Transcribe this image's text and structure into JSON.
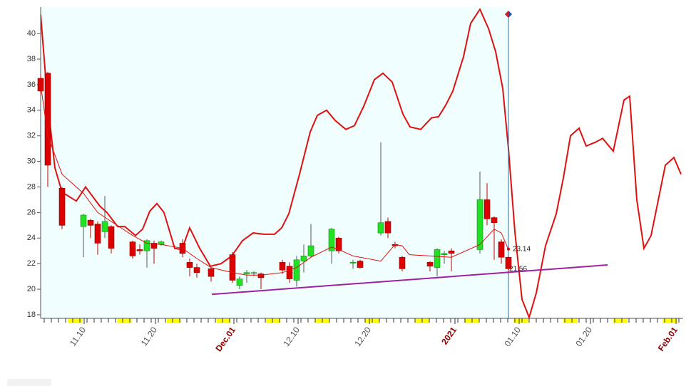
{
  "chart_data": {
    "type": "candlestick",
    "xlim": [
      2.9,
      93
    ],
    "ylim": [
      17.72,
      42.07
    ],
    "yticks": [
      18,
      20,
      22,
      24,
      26,
      28,
      30,
      32,
      34,
      36,
      38,
      40
    ],
    "xticks": [
      {
        "value": 9,
        "label": "11.10"
      },
      {
        "value": 19,
        "label": "11.20"
      },
      {
        "value": 30,
        "label": "Dec.01"
      },
      {
        "value": 39,
        "label": "12.10"
      },
      {
        "value": 49,
        "label": "12.20"
      },
      {
        "value": 61,
        "label": "2021"
      },
      {
        "value": 70,
        "label": "01.10"
      },
      {
        "value": 80,
        "label": "01.20"
      },
      {
        "value": 92,
        "label": "Feb.01"
      }
    ],
    "candles": {
      "up_color": "#22e022",
      "down_color": "#dd0000",
      "x": [
        2.9,
        3.9,
        5.9,
        8.9,
        9.9,
        10.9,
        11.9,
        12.8,
        15.8,
        16.8,
        17.8,
        18.8,
        19.8,
        22.8,
        23.8,
        24.8,
        26.8,
        29.8,
        30.8,
        31.8,
        32.8,
        33.8,
        36.8,
        37.8,
        38.8,
        39.8,
        40.8,
        43.7,
        44.7,
        46.7,
        47.7,
        50.6,
        51.6,
        52.6,
        53.6,
        57.5,
        58.5,
        59.5,
        60.5,
        64.5,
        65.5,
        66.5,
        67.5,
        68.5
      ],
      "open": [
        36.5,
        36.9,
        27.9,
        24.9,
        25.4,
        25.1,
        24.5,
        24.9,
        23.7,
        23.1,
        23,
        23.6,
        23.5,
        23.6,
        22.1,
        21.7,
        21.6,
        22.7,
        20.3,
        21.2,
        21.3,
        21.2,
        22.1,
        21.8,
        20.7,
        22.2,
        22.6,
        23,
        24,
        22.1,
        22.2,
        24.4,
        25.3,
        23.5,
        22.5,
        22.1,
        21.7,
        22.7,
        23,
        23.1,
        27,
        25.6,
        23.7,
        22.5
      ],
      "high": [
        36.8,
        37,
        28,
        25.9,
        25.5,
        25.3,
        27.3,
        25,
        23.8,
        23.5,
        23.9,
        23.8,
        23.8,
        23.9,
        22.4,
        22,
        21.7,
        22.9,
        21,
        21.5,
        21.4,
        21.3,
        22.3,
        22.1,
        22.6,
        23.5,
        25.1,
        24.8,
        24.1,
        22.3,
        22.3,
        31.5,
        25.6,
        23.7,
        22.6,
        22.2,
        23.2,
        23,
        23.2,
        29.2,
        28.3,
        25.7,
        23.9,
        22.6
      ],
      "low": [
        35.3,
        28,
        24.7,
        22.5,
        24,
        22.7,
        24,
        22.8,
        22.4,
        22.7,
        21.7,
        22,
        23.4,
        22.5,
        21,
        20.9,
        20.6,
        20.5,
        20,
        20.5,
        21,
        20,
        21.2,
        20.5,
        20.2,
        21.3,
        22.5,
        22,
        22.8,
        21.6,
        21.6,
        24.2,
        24,
        23.2,
        21.4,
        21.4,
        21,
        22,
        21.4,
        22.8,
        25,
        22.3,
        22,
        21.2
      ],
      "close": [
        35.5,
        29.7,
        25,
        25.8,
        25,
        23.6,
        25.3,
        23.2,
        22.6,
        23,
        23.8,
        23.2,
        23.7,
        22.8,
        21.7,
        21.3,
        21,
        20.7,
        20.8,
        21.3,
        21.3,
        20.9,
        21.5,
        20.8,
        22.3,
        22.6,
        23.4,
        24.7,
        23,
        22.1,
        21.7,
        25.2,
        24.4,
        23.4,
        21.6,
        21.8,
        23.1,
        22.8,
        22.8,
        27,
        25.5,
        25.2,
        22.5,
        21.6
      ]
    },
    "moving_average": {
      "color": "#e01010",
      "x": [
        2.9,
        3.9,
        5.9,
        8.9,
        10.9,
        12.8,
        15.8,
        17.8,
        19.8,
        22.8,
        24.8,
        26.8,
        29.8,
        31.8,
        33.8,
        36.8,
        38.8,
        40.8,
        43.7,
        44.7,
        46.7,
        50.6,
        52.6,
        53.6,
        54.6,
        57.5,
        60.5,
        64.5,
        66.5,
        67.5,
        68.5
      ],
      "values": [
        36,
        32,
        29,
        27.5,
        26,
        25.3,
        24.2,
        23.6,
        23.5,
        23.2,
        22.4,
        21.7,
        21.3,
        21.1,
        21.1,
        21.3,
        21.7,
        22.5,
        23.3,
        23.1,
        22.6,
        22.2,
        23.5,
        23.4,
        22.7,
        22.6,
        22.5,
        23.5,
        24.7,
        24.4,
        23.1
      ]
    },
    "forecast": {
      "color": "#e01010",
      "x": [
        2.9,
        3.9,
        4.9,
        5.9,
        7.9,
        9.2,
        11.2,
        12.2,
        13.7,
        14.7,
        16.2,
        17.2,
        18.2,
        19.2,
        20.2,
        21.7,
        22.7,
        23.8,
        25.2,
        26.7,
        28.2,
        29.7,
        31.2,
        32.7,
        34.2,
        35.7,
        36.7,
        37.7,
        39.2,
        40.7,
        41.7,
        43,
        44.2,
        45.7,
        46.9,
        48.2,
        49.7,
        50.9,
        52.2,
        53.7,
        54.7,
        56.2,
        57.7,
        58.7,
        59.7,
        60.7,
        62.2,
        63.2,
        64.5,
        65.7,
        66.7,
        67.7,
        68.5,
        69.4,
        70.4,
        71.4,
        72.4,
        73.7,
        75.2,
        76.2,
        77.2,
        78.4,
        79.4,
        80.7,
        81.7,
        83.2,
        84.7,
        85.5,
        86.5,
        87.5,
        88.5,
        90.5,
        91.7,
        92.7
      ],
      "values": [
        41.5,
        34.5,
        29.5,
        27.6,
        26.9,
        28,
        26.5,
        26,
        24.9,
        24.9,
        24.2,
        24.7,
        26.1,
        26.7,
        26,
        23.2,
        23.1,
        24.8,
        23.2,
        21.8,
        22,
        22.6,
        23.8,
        24.4,
        24.3,
        24.3,
        24.8,
        25.9,
        29,
        32.3,
        33.6,
        34,
        33.2,
        32.5,
        32.8,
        34.3,
        36.4,
        36.9,
        36.2,
        33.7,
        32.7,
        32.5,
        33.4,
        33.5,
        34.4,
        35.5,
        38.2,
        40.8,
        41.9,
        40.4,
        38.6,
        35.7,
        31,
        24.5,
        19.2,
        17.8,
        19.7,
        23.4,
        25.9,
        28.7,
        32,
        32.6,
        31.2,
        31.5,
        31.8,
        30.8,
        34.8,
        35.1,
        27,
        23.2,
        24.2,
        29.7,
        30.3,
        29
      ]
    },
    "trendline": {
      "color": "#a020a0",
      "x": [
        26.9,
        82.4
      ],
      "values": [
        19.6,
        21.9
      ]
    },
    "price_labels": [
      23.14,
      21.56
    ]
  }
}
